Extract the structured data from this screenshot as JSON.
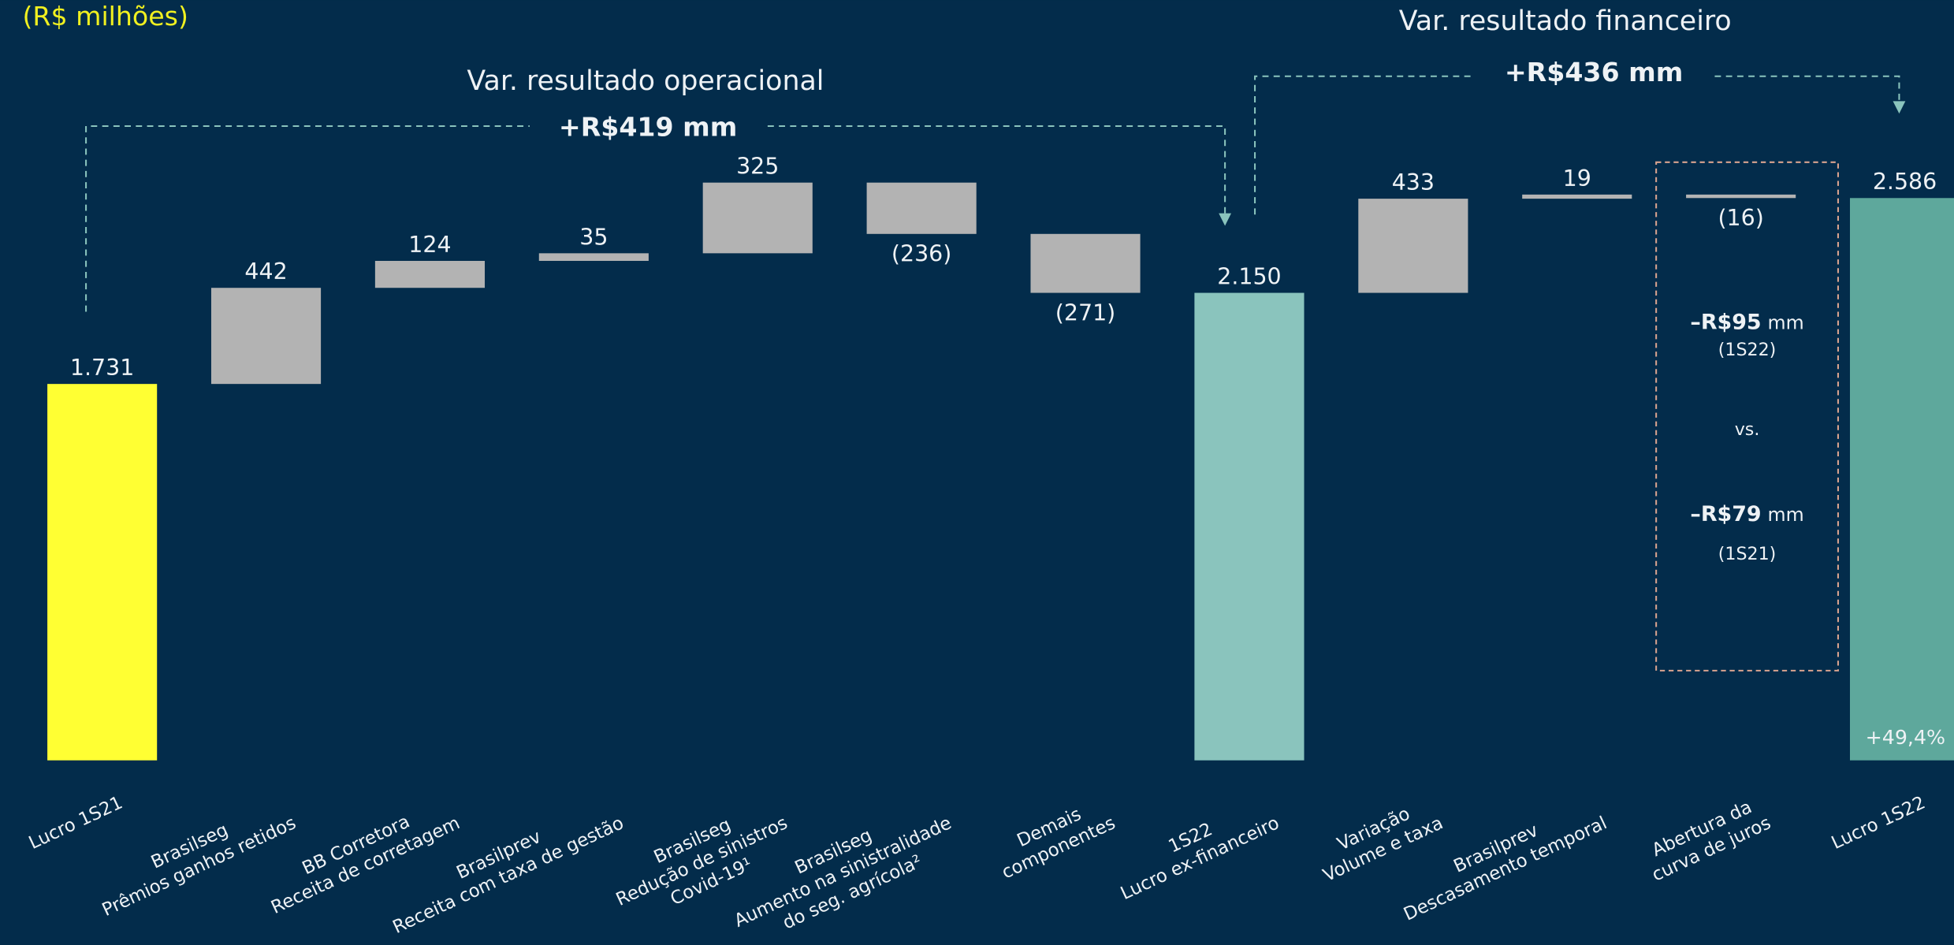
{
  "chart_data": {
    "type": "waterfall",
    "subtitle": "(R$ milhões)",
    "categories": [
      [
        "Lucro 1S21"
      ],
      [
        "Brasilseg",
        "Prêmios ganhos retidos"
      ],
      [
        "BB Corretora",
        "Receita de corretagem"
      ],
      [
        "Brasilprev",
        "Receita com taxa de gestão"
      ],
      [
        "Brasilseg",
        "Redução de sinistros",
        "Covid-19¹"
      ],
      [
        "Brasilseg",
        "Aumento na sinistralidade",
        "do seg. agrícola²"
      ],
      [
        "Demais",
        "componentes"
      ],
      [
        "1S22",
        "Lucro ex-financeiro"
      ],
      [
        "Variação",
        "Volume e taxa"
      ],
      [
        "Brasilprev",
        "Descasamento temporal"
      ],
      [
        "Abertura da",
        "curva de juros"
      ],
      [
        "Lucro 1S22"
      ]
    ],
    "values": [
      1731,
      442,
      124,
      35,
      325,
      -236,
      -271,
      2150,
      433,
      19,
      -16,
      2586
    ],
    "value_labels": [
      "1.731",
      "442",
      "124",
      "35",
      "325",
      "(236)",
      "(271)",
      "2.150",
      "433",
      "19",
      "(16)",
      "2.586"
    ],
    "measure": [
      "total",
      "relative",
      "relative",
      "relative",
      "relative",
      "relative",
      "relative",
      "total",
      "relative",
      "relative",
      "relative",
      "total"
    ],
    "colors": [
      "#ffff33",
      "#b3b3b3",
      "#b3b3b3",
      "#b3b3b3",
      "#b3b3b3",
      "#b3b3b3",
      "#b3b3b3",
      "#8ac4bd",
      "#b3b3b3",
      "#b3b3b3",
      "#b3b3b3",
      "#5ea89c"
    ],
    "annotations": {
      "operational_title": "Var. resultado operacional",
      "operational_value": "+R$419 mm",
      "financial_title": "Var. resultado financeiro",
      "financial_value": "+R$436 mm",
      "box_value_1": "–R$95",
      "box_unit_1": "mm",
      "box_period_1": "(1S22)",
      "box_vs": "vs.",
      "box_value_2": "–R$79",
      "box_unit_2": "mm",
      "box_period_2": "(1S21)",
      "growth": "+49,4%"
    }
  }
}
